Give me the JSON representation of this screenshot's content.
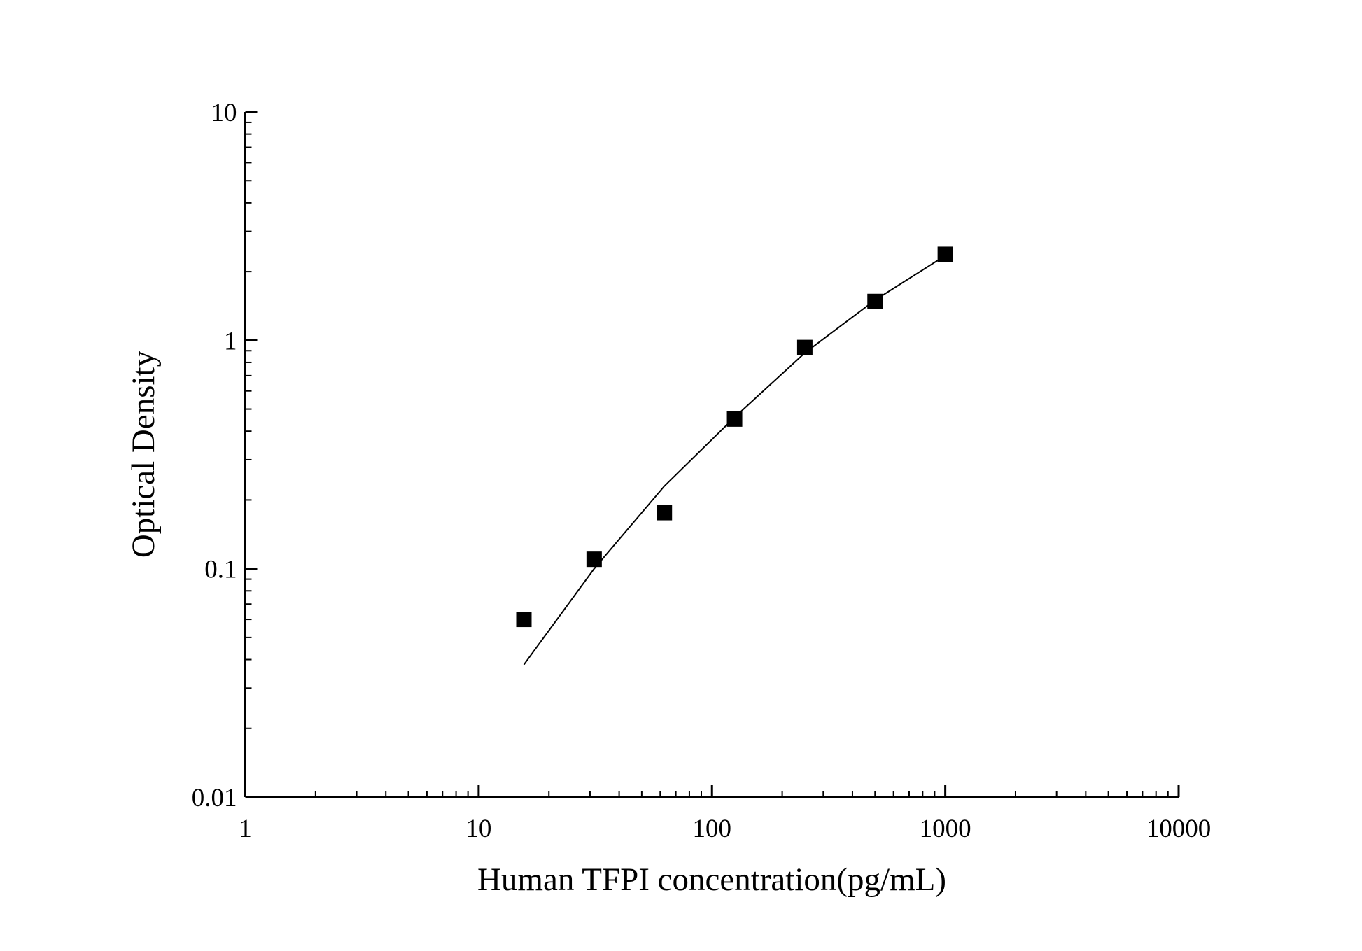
{
  "chart_data": {
    "type": "scatter",
    "x_label": "Human TFPI concentration(pg/mL)",
    "y_label": "Optical Density",
    "xscale": "log",
    "yscale": "log",
    "xlim": [
      1,
      10000
    ],
    "ylim": [
      0.01,
      10
    ],
    "xticks": [
      1,
      10,
      100,
      1000,
      10000
    ],
    "yticks": [
      0.01,
      0.1,
      1,
      10
    ],
    "series": [
      {
        "style": "markers",
        "color": "#000000",
        "x": [
          15.625,
          31.25,
          62.5,
          125,
          250,
          500,
          1000
        ],
        "values": [
          0.06,
          0.11,
          0.176,
          0.452,
          0.93,
          1.48,
          2.38
        ]
      },
      {
        "style": "line",
        "color": "#000000",
        "x": [
          15.625,
          31.25,
          62.5,
          125,
          250,
          500,
          1000
        ],
        "values": [
          0.038,
          0.1,
          0.23,
          0.46,
          0.88,
          1.5,
          2.35
        ]
      }
    ]
  }
}
